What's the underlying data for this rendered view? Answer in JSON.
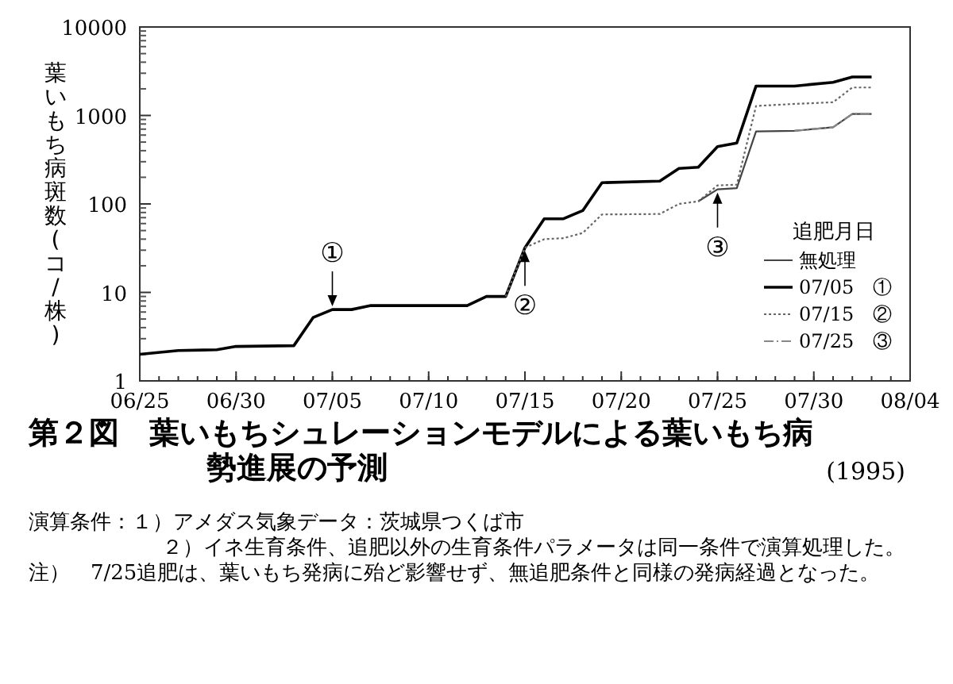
{
  "chart_data": {
    "type": "line",
    "title": "第２図　葉いもちシュレーションモデルによる葉いもち病勢進展の予測",
    "subtitle": "(1995)",
    "ylabel": "葉いもち病斑数(コ/株)",
    "legend_title": "追肥月日",
    "log": true,
    "grid": false,
    "legend": "bottom right",
    "xlim": [
      "--06-25",
      "--08-04"
    ],
    "xticks": [
      {
        "value": "--06-25",
        "label": "06/25"
      },
      {
        "value": "--06-30",
        "label": "06/30"
      },
      {
        "value": "--07-05",
        "label": "07/05"
      },
      {
        "value": "--07-10",
        "label": "07/10"
      },
      {
        "value": "--07-15",
        "label": "07/15"
      },
      {
        "value": "--07-20",
        "label": "07/20"
      },
      {
        "value": "--07-25",
        "label": "07/25"
      },
      {
        "value": "--07-30",
        "label": "07/30"
      },
      {
        "value": "--08-04",
        "label": "08/04"
      }
    ],
    "ylim": [
      1,
      10000
    ],
    "yticks": [
      1,
      10,
      100,
      1000,
      10000
    ],
    "series": [
      {
        "name": "無処理",
        "color": "#444444",
        "line_style": "solid",
        "x": [
          "--07-24",
          "--07-25",
          "--07-26",
          "--07-27",
          "--07-29",
          "--07-31",
          "--08-01",
          "--08-02"
        ],
        "values": [
          107,
          146,
          151,
          660,
          670,
          736,
          1040,
          1040
        ]
      },
      {
        "name": "07/05　①",
        "color": "#000000",
        "line_style": "solid",
        "x": [
          "--06-25",
          "--06-27",
          "--06-29",
          "--06-30",
          "--07-03",
          "--07-04",
          "--07-05",
          "--07-06",
          "--07-07",
          "--07-12",
          "--07-13",
          "--07-14",
          "--07-15",
          "--07-16",
          "--07-17",
          "--07-18",
          "--07-19",
          "--07-22",
          "--07-23",
          "--07-24",
          "--07-25",
          "--07-26",
          "--07-27",
          "--07-29",
          "--07-31",
          "--08-01",
          "--08-02"
        ],
        "values": [
          2.0,
          2.2,
          2.25,
          2.45,
          2.5,
          5.2,
          6.4,
          6.4,
          7.1,
          7.1,
          9.0,
          9.0,
          32,
          68,
          68,
          84,
          174,
          181,
          252,
          260,
          444,
          488,
          2150,
          2150,
          2370,
          2720,
          2720
        ]
      },
      {
        "name": "07/15　②",
        "color": "#666666",
        "line_style": "dotted",
        "x": [
          "--07-14",
          "--07-15",
          "--07-16",
          "--07-17",
          "--07-18",
          "--07-19",
          "--07-22",
          "--07-23",
          "--07-24",
          "--07-25",
          "--07-26",
          "--07-27",
          "--07-29",
          "--07-31",
          "--08-01",
          "--08-02"
        ],
        "values": [
          9.0,
          32,
          40,
          41,
          47,
          76,
          77,
          100,
          107,
          162,
          165,
          1280,
          1350,
          1410,
          2070,
          2070
        ]
      },
      {
        "name": "07/25　③",
        "color": "#888888",
        "line_style": "dashed",
        "x": [
          "--07-29",
          "--07-31",
          "--08-01",
          "--08-02"
        ],
        "values": [
          670,
          736,
          1040,
          1040
        ]
      }
    ],
    "annotations": [
      {
        "text": "①",
        "x": "--07-05",
        "y": 6.4
      },
      {
        "text": "②",
        "x": "--07-15",
        "y": 32
      },
      {
        "text": "③",
        "x": "--07-25",
        "y": 146
      },
      "演算条件：１）アメダス気象データ：茨城県つくば市",
      "２）イネ生育条件、追肥以外の生育条件パラメータは同一条件で演算処理した。",
      "注）　7/25追肥は、葉いもち発病に殆ど影響せず、無追肥条件と同様の発病経過となった。"
    ]
  }
}
